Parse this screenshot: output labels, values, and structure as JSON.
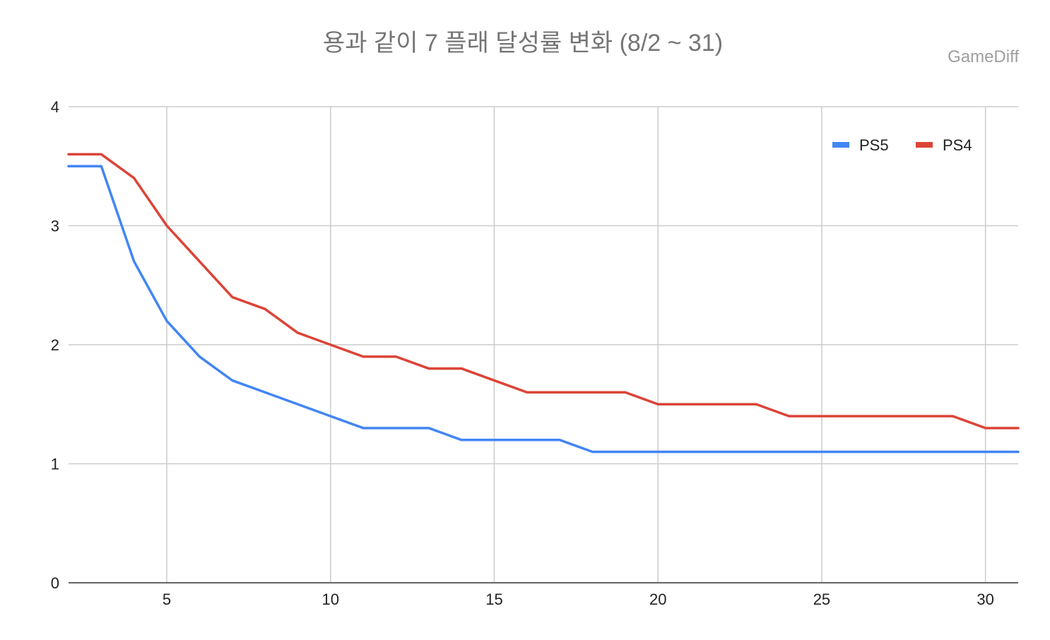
{
  "chart_data": {
    "type": "line",
    "title": "용과 같이 7 플래 달성률 변화 (8/2 ~ 31)",
    "watermark": "GameDiff",
    "xlabel": "",
    "ylabel": "",
    "xlim": [
      2,
      31
    ],
    "ylim": [
      0,
      4
    ],
    "x_ticks": [
      5,
      10,
      15,
      20,
      25,
      30
    ],
    "y_ticks": [
      0,
      1,
      2,
      3,
      4
    ],
    "grid": true,
    "legend_position": "top-right",
    "x": [
      2,
      3,
      4,
      5,
      6,
      7,
      8,
      9,
      10,
      11,
      12,
      13,
      14,
      15,
      16,
      17,
      18,
      19,
      20,
      21,
      22,
      23,
      24,
      25,
      26,
      27,
      28,
      29,
      30,
      31
    ],
    "series": [
      {
        "name": "PS5",
        "color": "#4285f4",
        "values": [
          3.5,
          3.5,
          2.7,
          2.2,
          1.9,
          1.7,
          1.6,
          1.5,
          1.4,
          1.3,
          1.3,
          1.3,
          1.2,
          1.2,
          1.2,
          1.2,
          1.1,
          1.1,
          1.1,
          1.1,
          1.1,
          1.1,
          1.1,
          1.1,
          1.1,
          1.1,
          1.1,
          1.1,
          1.1,
          1.1
        ]
      },
      {
        "name": "PS4",
        "color": "#db4437",
        "values": [
          3.6,
          3.6,
          3.4,
          3.0,
          2.7,
          2.4,
          2.3,
          2.1,
          2.0,
          1.9,
          1.9,
          1.8,
          1.8,
          1.7,
          1.6,
          1.6,
          1.6,
          1.6,
          1.5,
          1.5,
          1.5,
          1.5,
          1.4,
          1.4,
          1.4,
          1.4,
          1.4,
          1.4,
          1.3,
          1.3
        ]
      }
    ]
  },
  "colors": {
    "title": "#757575",
    "watermark": "#9e9e9e",
    "axis_text": "#222222",
    "grid": "#cccccc",
    "axis_line": "#333333"
  }
}
